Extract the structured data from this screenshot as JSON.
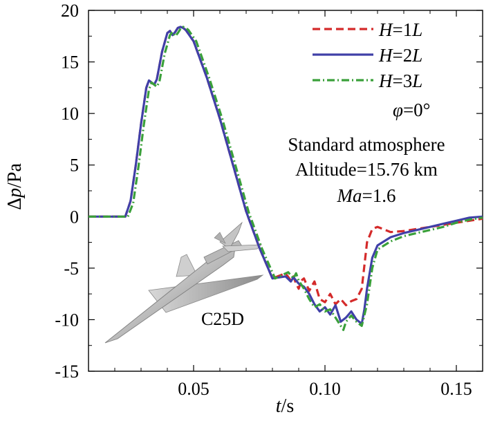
{
  "chart_data": {
    "type": "line",
    "title": "",
    "xlabel": {
      "italic": "t",
      "rest": "/s"
    },
    "ylabel": {
      "prefix": "Δ",
      "italic": "p",
      "rest": "/Pa"
    },
    "xlim": [
      0.01,
      0.16
    ],
    "ylim": [
      -15,
      20
    ],
    "xticks": [
      0.05,
      0.1,
      0.15
    ],
    "xtick_labels": [
      "0.05",
      "0.10",
      "0.15"
    ],
    "yticks": [
      -15,
      -10,
      -5,
      0,
      5,
      10,
      15,
      20
    ],
    "ytick_labels": [
      "-15",
      "-10",
      "-5",
      "0",
      "5",
      "10",
      "15",
      "20"
    ],
    "grid": false,
    "legend_position": "top-right",
    "series": [
      {
        "name": "H=1L",
        "label_italic": "H",
        "label_mid": "=1",
        "label_italic2": "L",
        "color": "#d42a2a",
        "style": "dashed",
        "x": [
          0.01,
          0.024,
          0.026,
          0.028,
          0.03,
          0.032,
          0.033,
          0.034,
          0.035,
          0.036,
          0.038,
          0.04,
          0.041,
          0.042,
          0.043,
          0.044,
          0.045,
          0.046,
          0.047,
          0.05,
          0.055,
          0.06,
          0.065,
          0.07,
          0.075,
          0.08,
          0.085,
          0.087,
          0.088,
          0.089,
          0.09,
          0.091,
          0.092,
          0.094,
          0.096,
          0.098,
          0.1,
          0.102,
          0.104,
          0.106,
          0.108,
          0.11,
          0.112,
          0.114,
          0.116,
          0.118,
          0.12,
          0.125,
          0.13,
          0.135,
          0.14,
          0.145,
          0.15,
          0.155,
          0.16
        ],
        "y": [
          0,
          0,
          1.5,
          5.0,
          9.0,
          12.5,
          13.2,
          13.0,
          12.8,
          13.3,
          16.0,
          17.8,
          18.0,
          17.6,
          17.9,
          18.3,
          18.4,
          18.3,
          18.1,
          17.0,
          13.5,
          9.5,
          5.0,
          0.5,
          -3.0,
          -6.0,
          -5.5,
          -6.2,
          -5.8,
          -6.5,
          -7.0,
          -6.2,
          -6.0,
          -7.2,
          -6.3,
          -8.0,
          -8.3,
          -7.5,
          -8.5,
          -8.0,
          -8.6,
          -8.2,
          -8.0,
          -7.0,
          -2.5,
          -1.2,
          -1.0,
          -1.5,
          -1.4,
          -1.2,
          -1.0,
          -0.8,
          -0.6,
          -0.4,
          -0.2
        ]
      },
      {
        "name": "H=2L",
        "label_italic": "H",
        "label_mid": "=2",
        "label_italic2": "L",
        "color": "#4040a8",
        "style": "solid",
        "x": [
          0.01,
          0.024,
          0.026,
          0.028,
          0.03,
          0.032,
          0.033,
          0.034,
          0.035,
          0.036,
          0.038,
          0.04,
          0.041,
          0.042,
          0.043,
          0.044,
          0.045,
          0.046,
          0.047,
          0.05,
          0.055,
          0.06,
          0.065,
          0.07,
          0.075,
          0.08,
          0.085,
          0.087,
          0.088,
          0.09,
          0.092,
          0.094,
          0.096,
          0.098,
          0.1,
          0.102,
          0.104,
          0.106,
          0.108,
          0.11,
          0.112,
          0.114,
          0.115,
          0.116,
          0.118,
          0.12,
          0.125,
          0.13,
          0.135,
          0.14,
          0.145,
          0.15,
          0.155,
          0.16
        ],
        "y": [
          0,
          0,
          1.5,
          5.0,
          9.0,
          12.5,
          13.2,
          13.0,
          12.8,
          13.3,
          16.0,
          17.8,
          18.0,
          17.6,
          17.9,
          18.3,
          18.4,
          18.3,
          18.1,
          17.0,
          13.5,
          9.5,
          5.0,
          0.5,
          -3.0,
          -6.0,
          -5.8,
          -6.3,
          -5.9,
          -6.5,
          -6.8,
          -7.5,
          -8.5,
          -9.2,
          -8.8,
          -9.5,
          -8.6,
          -10.2,
          -9.8,
          -9.2,
          -10.0,
          -10.4,
          -9.0,
          -7.0,
          -4.0,
          -2.8,
          -2.0,
          -1.6,
          -1.3,
          -1.0,
          -0.7,
          -0.4,
          -0.1,
          0.0
        ]
      },
      {
        "name": "H=3L",
        "label_italic": "H",
        "label_mid": "=3",
        "label_italic2": "L",
        "color": "#3aa03a",
        "style": "dashdot",
        "x": [
          0.01,
          0.025,
          0.027,
          0.029,
          0.031,
          0.033,
          0.034,
          0.035,
          0.036,
          0.037,
          0.039,
          0.041,
          0.042,
          0.043,
          0.044,
          0.045,
          0.046,
          0.047,
          0.048,
          0.051,
          0.056,
          0.061,
          0.066,
          0.071,
          0.076,
          0.081,
          0.086,
          0.088,
          0.089,
          0.09,
          0.092,
          0.094,
          0.096,
          0.098,
          0.1,
          0.102,
          0.104,
          0.106,
          0.107,
          0.108,
          0.11,
          0.112,
          0.114,
          0.116,
          0.118,
          0.12,
          0.125,
          0.13,
          0.135,
          0.14,
          0.145,
          0.15,
          0.155,
          0.16
        ],
        "y": [
          0,
          0,
          1.3,
          4.8,
          8.8,
          12.3,
          13.0,
          12.8,
          12.6,
          13.1,
          15.8,
          17.6,
          17.9,
          17.5,
          17.8,
          18.2,
          18.4,
          18.3,
          18.1,
          17.0,
          13.4,
          9.4,
          4.9,
          0.4,
          -3.1,
          -6.0,
          -5.4,
          -6.0,
          -5.5,
          -6.2,
          -7.0,
          -8.0,
          -8.8,
          -8.5,
          -9.2,
          -9.0,
          -9.8,
          -10.6,
          -11.0,
          -10.2,
          -9.6,
          -10.2,
          -10.6,
          -8.5,
          -5.0,
          -3.2,
          -2.4,
          -1.9,
          -1.6,
          -1.3,
          -1.0,
          -0.6,
          -0.3,
          -0.1
        ]
      }
    ],
    "annotations": {
      "phi": {
        "italic": "φ",
        "rest": "=0°"
      },
      "line1": "Standard atmosphere",
      "line2": "Altitude=15.76 km",
      "mach": {
        "italic": "Ma",
        "rest": "=1.6"
      },
      "model_label": "C25D"
    }
  }
}
